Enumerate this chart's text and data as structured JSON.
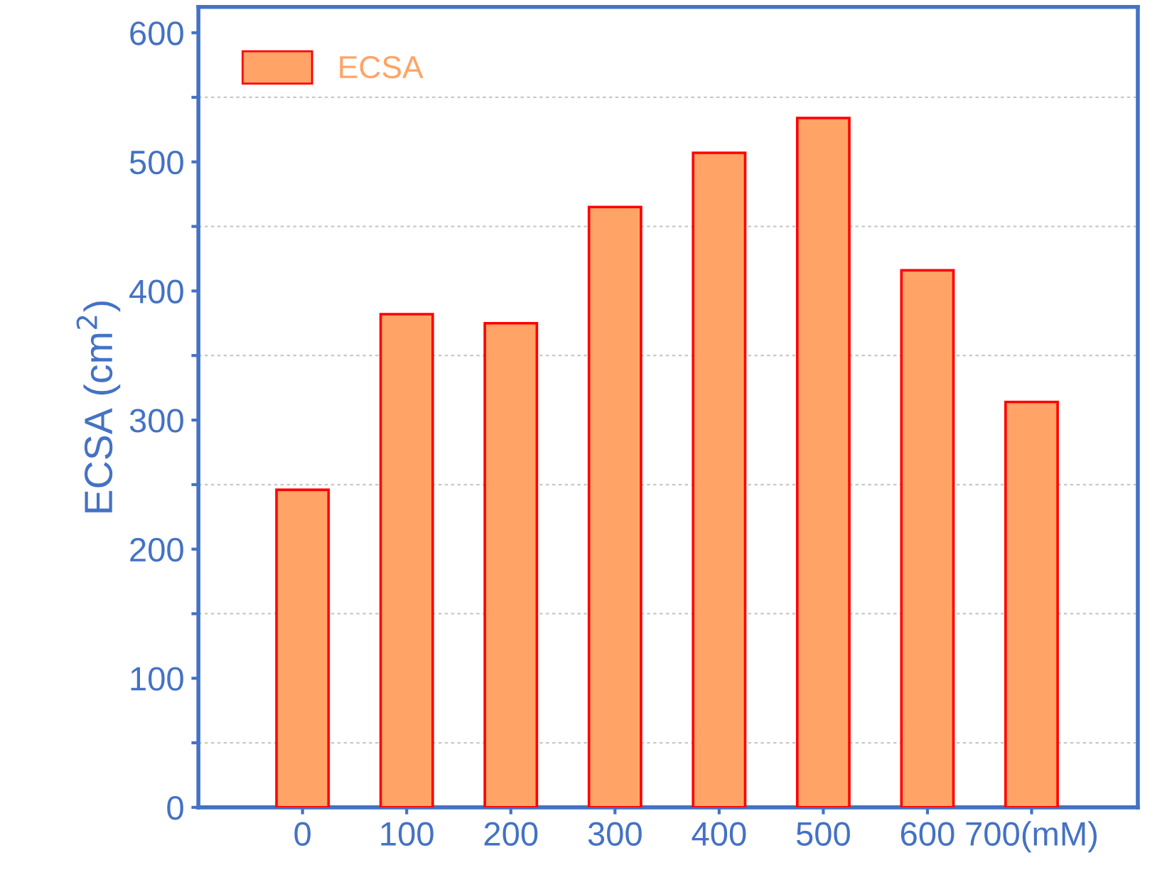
{
  "chart_data": {
    "type": "bar",
    "ylabel": "ECSA (cm$^{2}$)",
    "categories": [
      "0",
      "100",
      "200",
      "300",
      "400",
      "500",
      "600",
      "700(mM)"
    ],
    "series": [
      {
        "name": "ECSA",
        "color": "#ffa366",
        "values": [
          246,
          382,
          375,
          465,
          507,
          534,
          416,
          314
        ]
      }
    ],
    "ylim": [
      0,
      620
    ],
    "yticks": [
      0,
      {
        "value": 50,
        "label": null
      },
      100,
      {
        "value": 150,
        "label": null
      },
      200,
      {
        "value": 250,
        "label": null
      },
      300,
      {
        "value": 350,
        "label": null
      },
      400,
      {
        "value": 450,
        "label": null
      },
      500,
      {
        "value": 550,
        "label": null
      },
      600
    ],
    "grid": "y",
    "legend": "top left"
  }
}
